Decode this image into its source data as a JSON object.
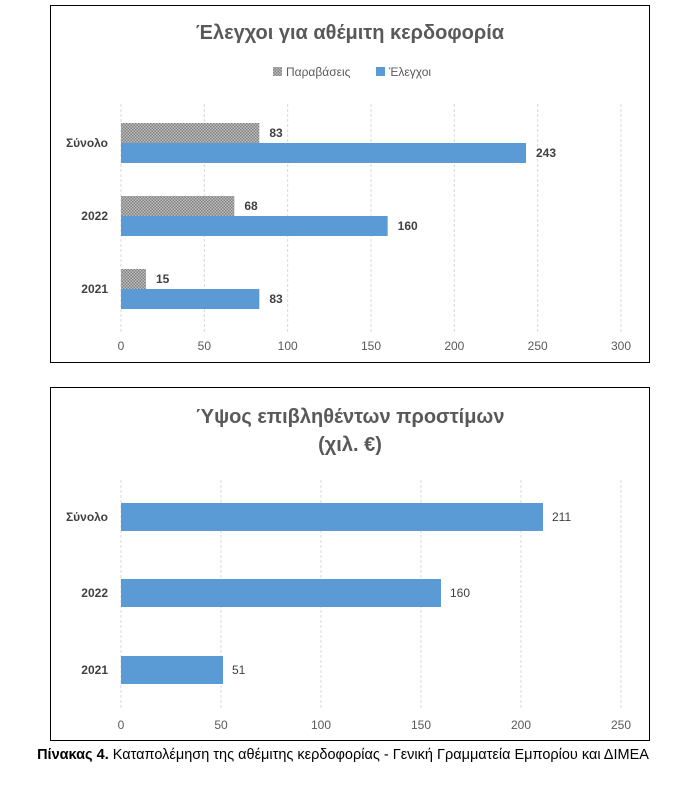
{
  "chart_data": [
    {
      "type": "bar",
      "orientation": "horizontal",
      "title": "Έλεγχοι για αθέμιτη κερδοφορία",
      "categories": [
        "Σύνολο",
        "2022",
        "2021"
      ],
      "series": [
        {
          "name": "Παραβάσεις",
          "values": [
            83,
            68,
            15
          ],
          "color": "#A6A6A6",
          "pattern": "dotted"
        },
        {
          "name": "Έλεγχοι",
          "values": [
            243,
            160,
            83
          ],
          "color": "#5B9BD5"
        }
      ],
      "xlim": [
        0,
        300
      ],
      "xticks": [
        0,
        50,
        100,
        150,
        200,
        250,
        300
      ],
      "grid": "vertical",
      "legend": "top",
      "data_labels": "bold"
    },
    {
      "type": "bar",
      "orientation": "horizontal",
      "title": "Ύψος επιβληθέντων προστίμων",
      "subtitle": "(χιλ. €)",
      "categories": [
        "Σύνολο",
        "2022",
        "2021"
      ],
      "series": [
        {
          "values": [
            211,
            160,
            51
          ],
          "color": "#5B9BD5"
        }
      ],
      "xlim": [
        0,
        250
      ],
      "xticks": [
        0,
        50,
        100,
        150,
        200,
        250
      ],
      "grid": "vertical",
      "data_labels": "normal"
    }
  ],
  "caption": {
    "label": "Πίνακας 4.",
    "text": " Καταπολέμηση της αθέμιτης κερδοφορίας - Γενική Γραμματεία Εμπορίου και ΔΙΜΕΑ"
  }
}
